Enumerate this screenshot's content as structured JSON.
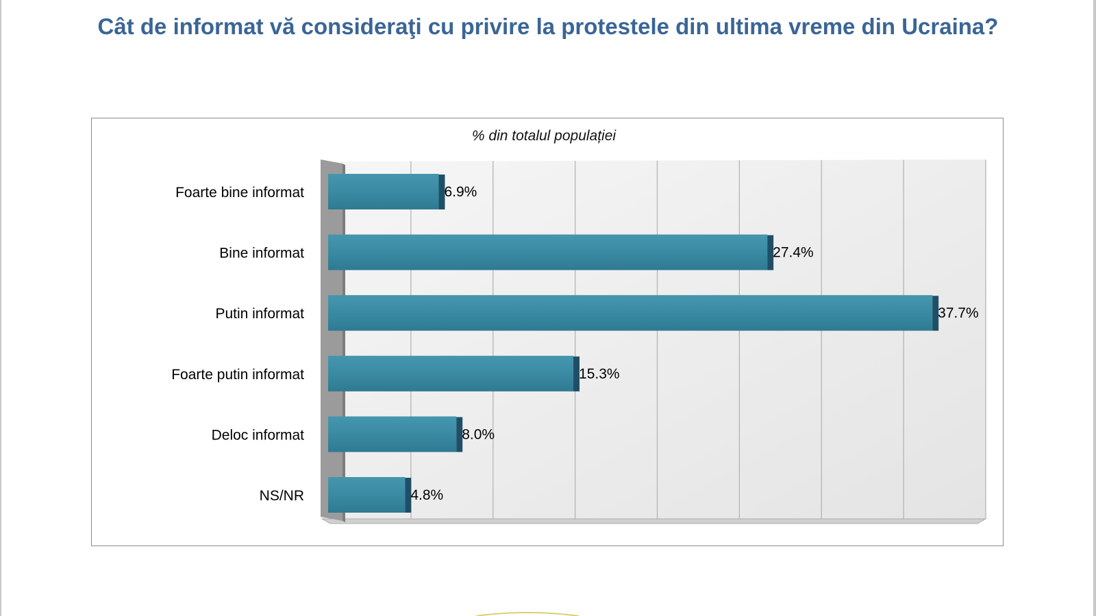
{
  "title": "Cât de informat vă consideraţi cu privire la protestele din ultima vreme din Ucraina?",
  "chart_data": {
    "type": "bar",
    "orientation": "horizontal",
    "subtitle": "% din totalul populației",
    "categories": [
      "Foarte bine informat",
      "Bine informat",
      "Putin informat",
      "Foarte putin informat",
      "Deloc informat",
      "NS/NR"
    ],
    "values": [
      6.9,
      27.4,
      37.7,
      15.3,
      8.0,
      4.8
    ],
    "value_labels": [
      "6.9%",
      "27.4%",
      "37.7%",
      "15.3%",
      "8.0%",
      "4.8%"
    ],
    "xlim": [
      0,
      40
    ],
    "gridlines": 8,
    "legend": "none",
    "bar_color": "#3a8aa3",
    "bar_edge_color": "#1f4f66"
  }
}
